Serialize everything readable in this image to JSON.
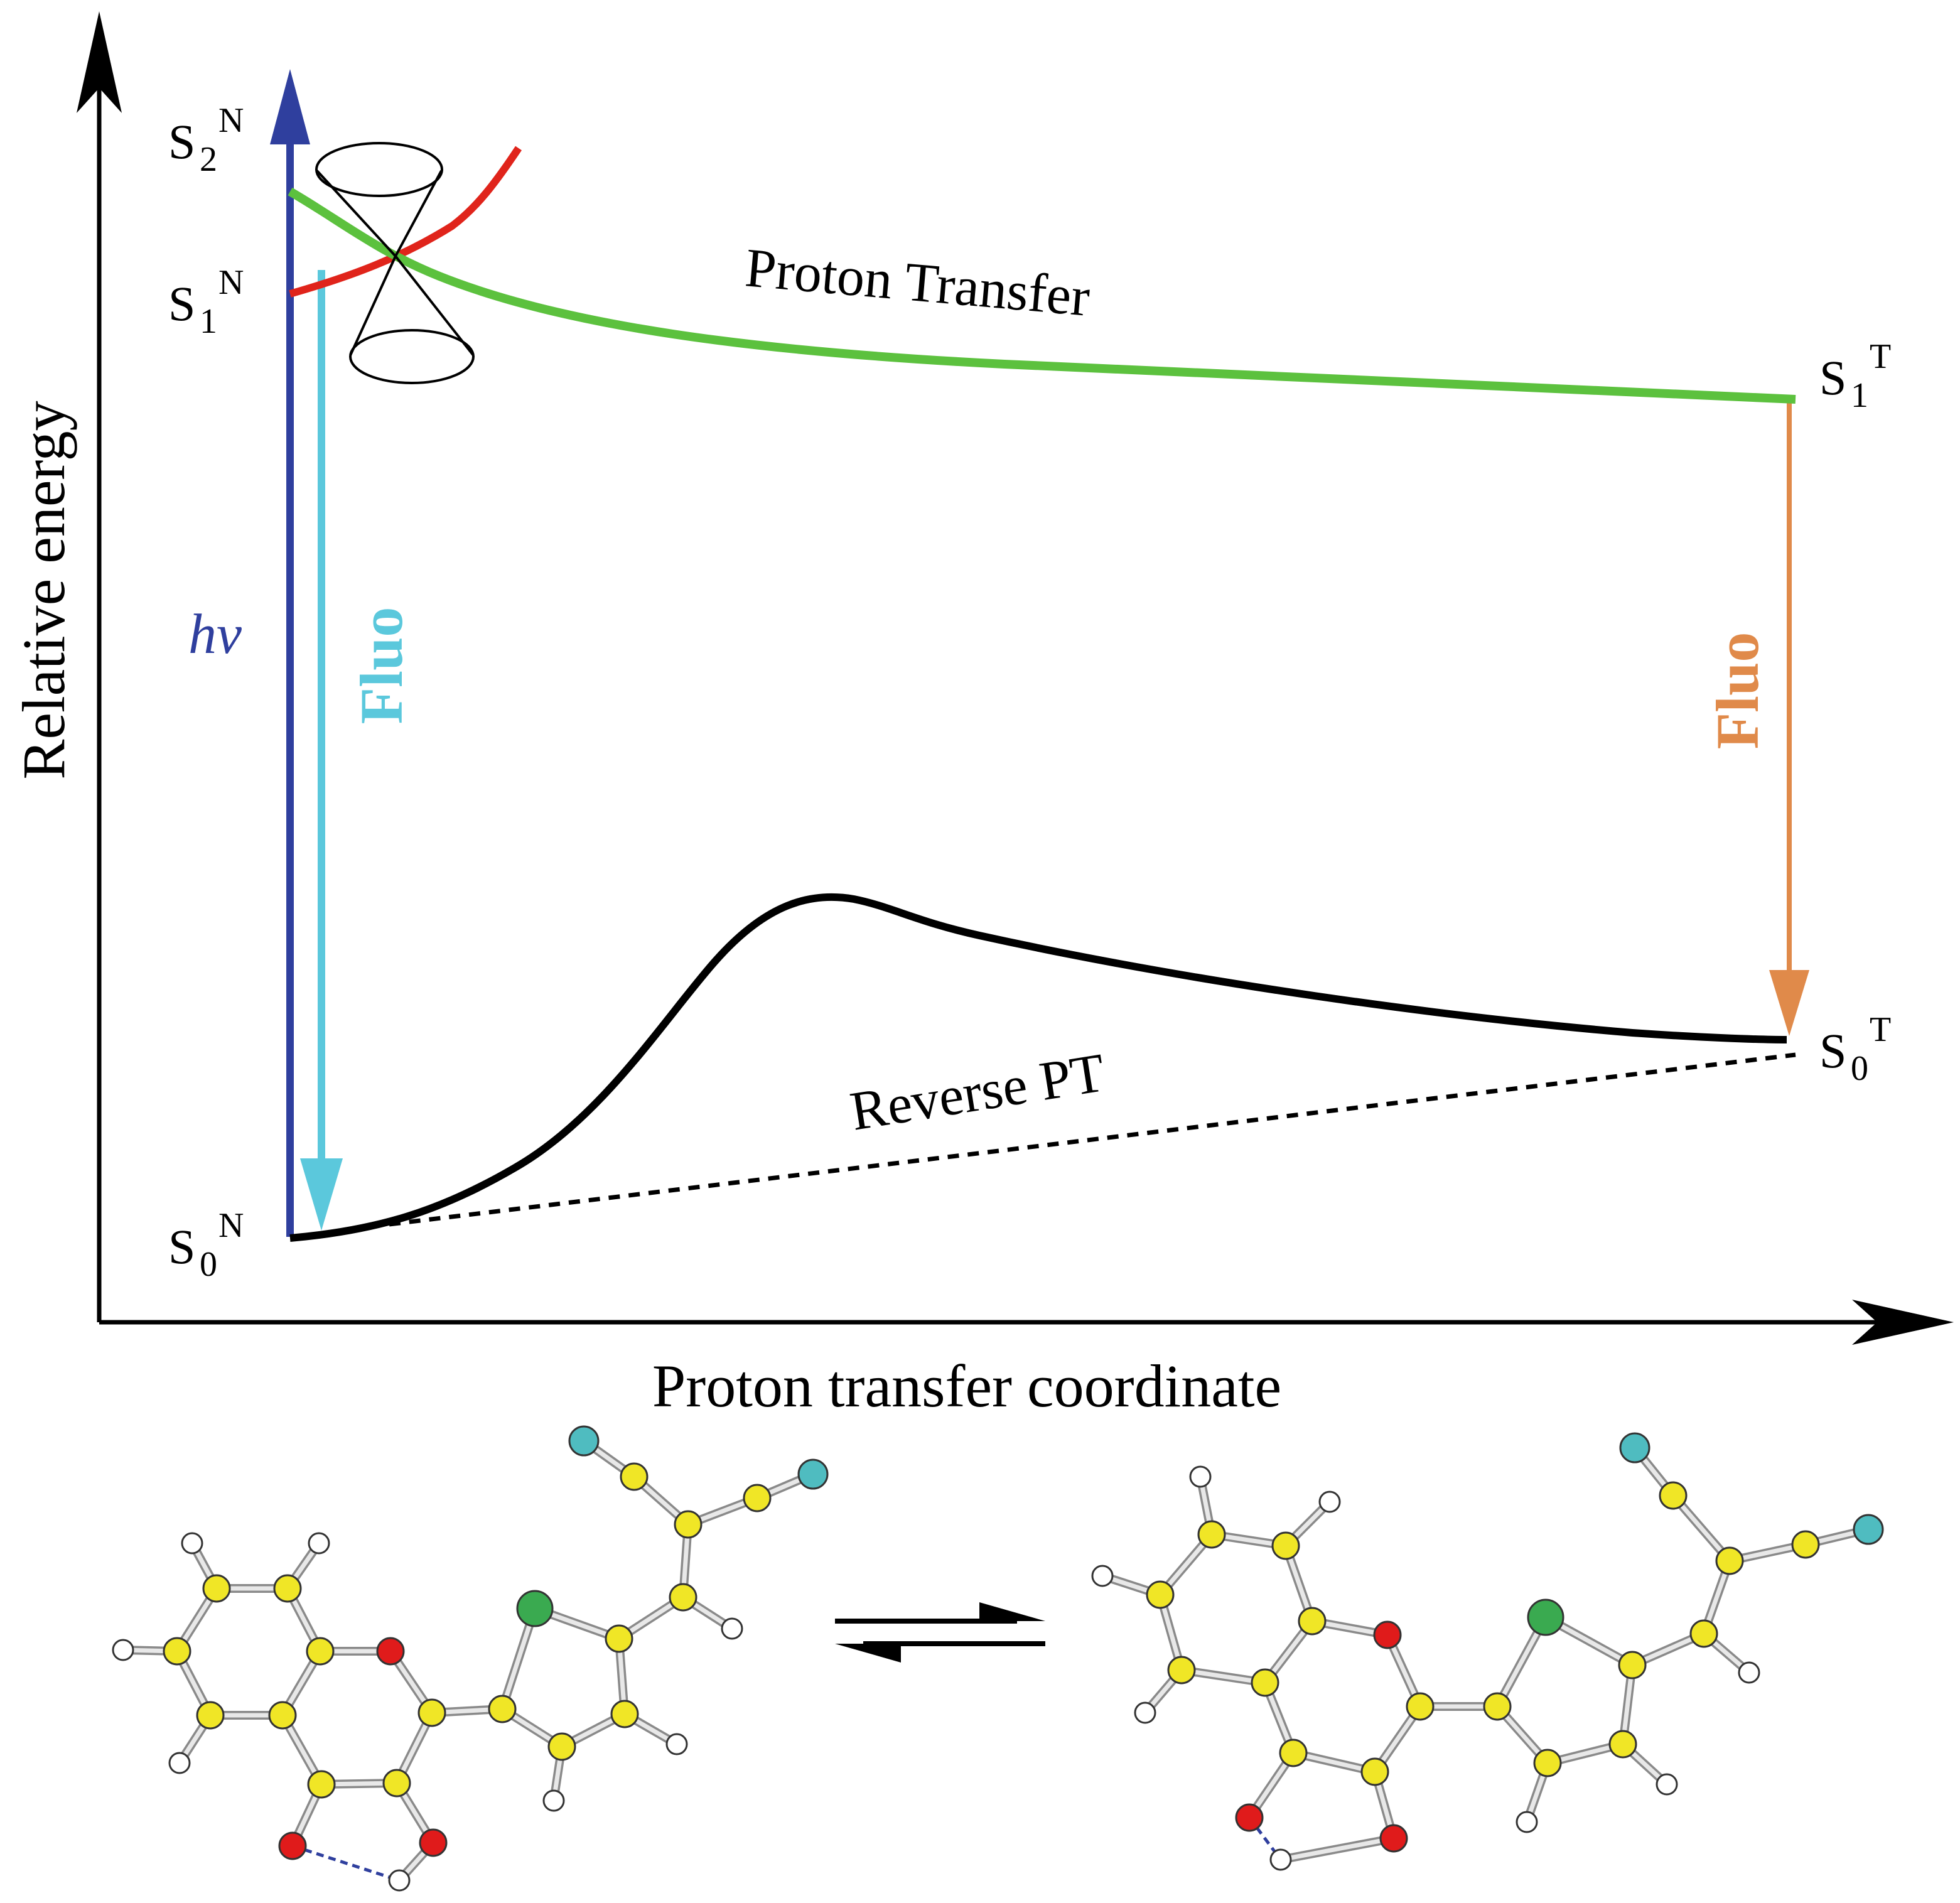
{
  "axes": {
    "y_label": "Relative energy",
    "x_label": "Proton transfer coordinate"
  },
  "states": {
    "s2n": {
      "main": "S",
      "sub": "2",
      "sup": "N"
    },
    "s1n": {
      "main": "S",
      "sub": "1",
      "sup": "N"
    },
    "s0n": {
      "main": "S",
      "sub": "0",
      "sup": "N"
    },
    "s1t": {
      "main": "S",
      "sub": "1",
      "sup": "T"
    },
    "s0t": {
      "main": "S",
      "sub": "0",
      "sup": "T"
    }
  },
  "annotations": {
    "excitation": "hv",
    "fluo_normal": "Fluo",
    "fluo_tautomer": "Fluo",
    "proton_transfer": "Proton Transfer",
    "reverse_pt": "Reverse PT"
  },
  "colors": {
    "excitation": "#2f3f9e",
    "fluo_normal": "#5bc8dc",
    "fluo_tautomer": "#e08a4a",
    "s1_surface": "#5cc13e",
    "s2_surface": "#e0241b",
    "s0_surface": "#000000",
    "atom_carbon": "#f0e626",
    "atom_oxygen": "#e01b1b",
    "atom_hydrogen": "#ffffff",
    "atom_sulfur": "#3aaa50",
    "atom_nitrogen": "#4fbcc0"
  }
}
